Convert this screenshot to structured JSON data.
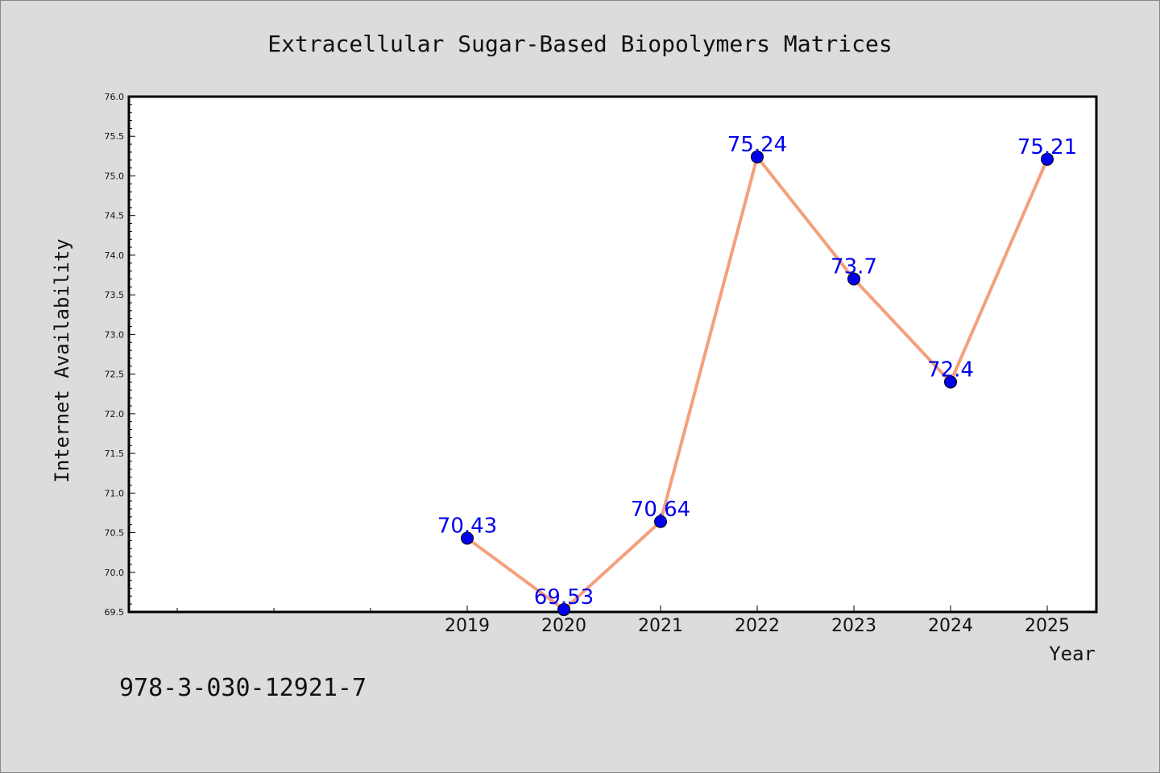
{
  "chart_data": {
    "type": "line",
    "title": "Extracellular Sugar-Based Biopolymers Matrices",
    "xlabel": "Year",
    "ylabel": "Internet Availability",
    "ylim": [
      69.5,
      76.0
    ],
    "y_ticks": [
      "69.5",
      "70.0",
      "70.5",
      "71.0",
      "71.5",
      "72.0",
      "72.5",
      "73.0",
      "73.5",
      "74.0",
      "74.5",
      "75.0",
      "75.5",
      "76.0"
    ],
    "x_ticks": [
      "2019",
      "2020",
      "2021",
      "2022",
      "2023",
      "2024",
      "2025"
    ],
    "x": [
      2019,
      2020,
      2021,
      2022,
      2023,
      2024,
      2025
    ],
    "values": [
      70.43,
      69.53,
      70.64,
      75.24,
      73.7,
      72.4,
      75.21
    ],
    "point_labels": [
      "70.43",
      "69.53",
      "70.64",
      "75.24",
      "73.7",
      "72.4",
      "75.21"
    ],
    "grid": false,
    "line_color": "#f4a07c",
    "marker_color": "#0000ee",
    "label_color": "#0000ee"
  },
  "footer": {
    "isbn": "978-3-030-12921-7"
  }
}
